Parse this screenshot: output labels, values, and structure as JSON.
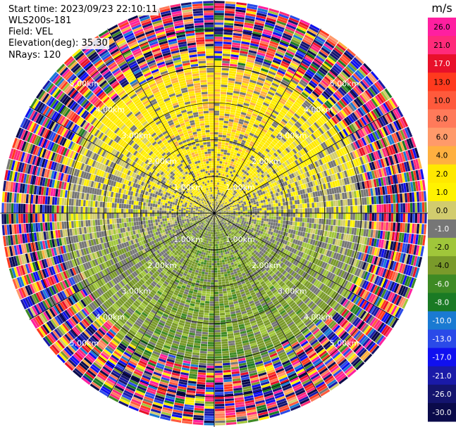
{
  "header": {
    "start_time": "Start time: 2023/09/23 22:10:11",
    "site": "WLS200s-181",
    "field": "Field: VEL",
    "elevation": "Elevation(deg): 35.30",
    "nrays": "NRays: 120"
  },
  "chart_data": {
    "type": "heatmap",
    "projection": "polar-ppi",
    "title": "",
    "field": "VEL",
    "elevation_deg": 35.3,
    "n_rays": 120,
    "range_rings_km": [
      1.0,
      2.0,
      3.0,
      4.0,
      5.0
    ],
    "ring_label_text": [
      "1.00km",
      "2.00km",
      "3.00km",
      "4.00km",
      "5.00km"
    ],
    "max_range_km": 5.8,
    "azimuth_lines_deg": [
      0,
      30,
      60,
      90,
      120,
      150,
      180,
      210,
      240,
      270,
      300,
      330
    ],
    "colorbar": {
      "unit": "m/s",
      "tick_labels": [
        "26.0",
        "21.0",
        "17.0",
        "13.0",
        "10.0",
        "8.0",
        "6.0",
        "4.0",
        "2.0",
        "1.0",
        "0.0",
        "-1.0",
        "-2.0",
        "-4.0",
        "-6.0",
        "-8.0",
        "-10.0",
        "-13.0",
        "-17.0",
        "-21.0",
        "-26.0",
        "-30.0"
      ],
      "colors": [
        "#ff1fa0",
        "#ff2a7a",
        "#e8102a",
        "#ff3a1e",
        "#ff5a3c",
        "#ff7a5a",
        "#ff9a6a",
        "#ffb040",
        "#ffe800",
        "#fff200",
        "#d2cc6e",
        "#767676",
        "#a0c63a",
        "#7a9a2a",
        "#3e8a24",
        "#1a7a24",
        "#1a7ad2",
        "#2a4ae8",
        "#1010f0",
        "#1a1aa8",
        "#14146e",
        "#0a0a4a"
      ]
    },
    "velocity_summary": [
      {
        "region": "north sector, 1-4 km",
        "approx_velocity_ms": 3
      },
      {
        "region": "south sector, 1-4 km",
        "approx_velocity_ms": -3
      },
      {
        "region": "near origin",
        "approx_velocity_ms": 0
      },
      {
        "region": "beyond 4.5 km",
        "approx_velocity_ms": "noise (full range)"
      }
    ]
  }
}
